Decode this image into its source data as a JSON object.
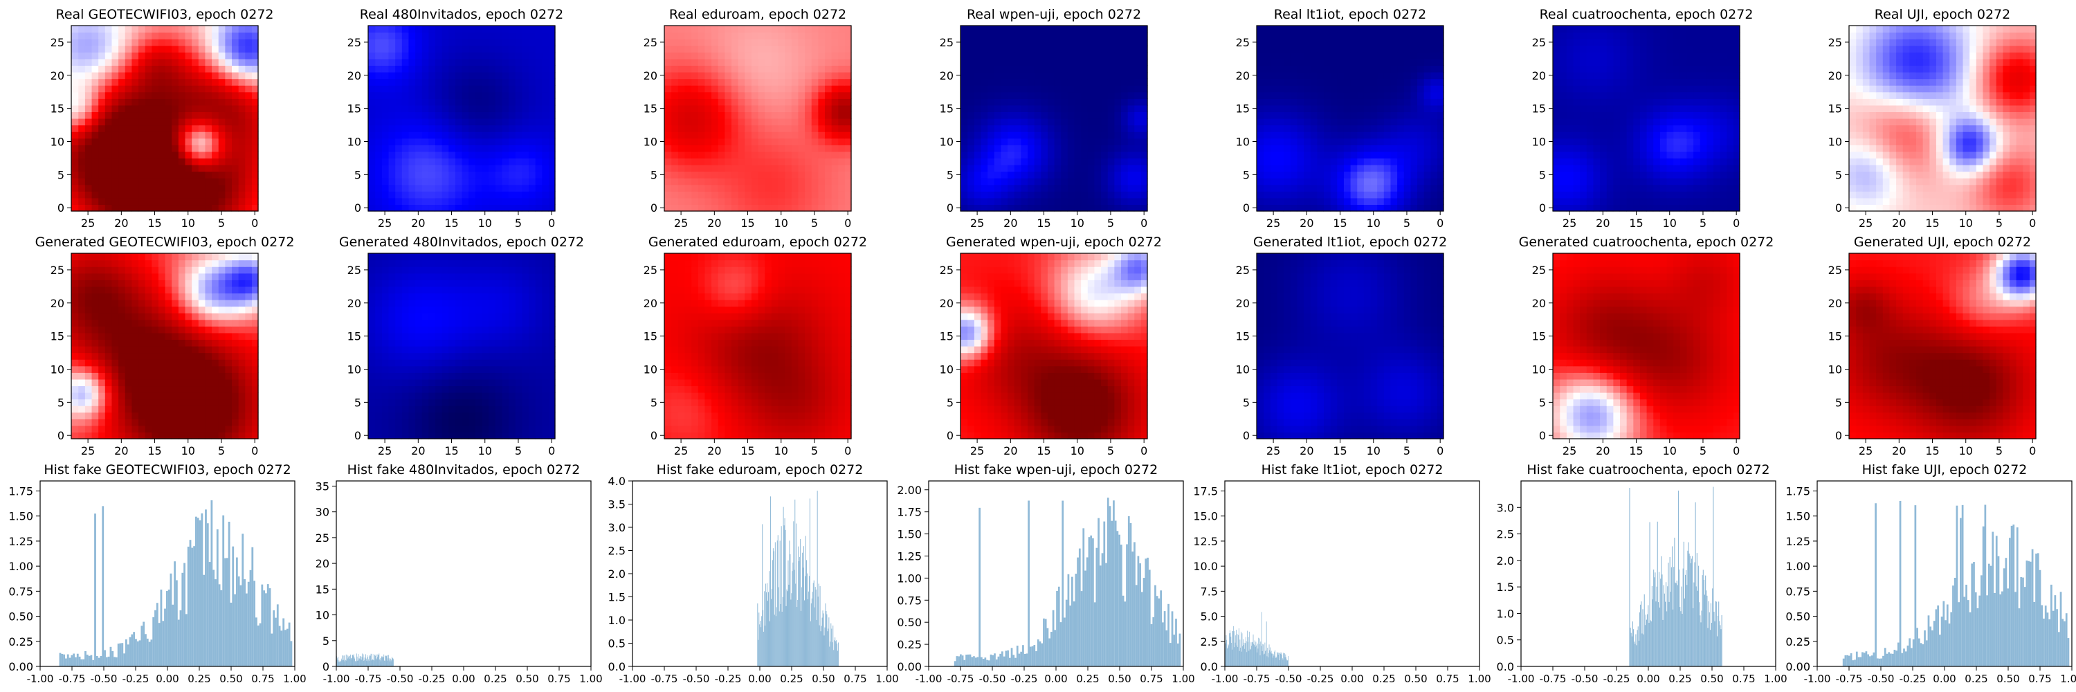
{
  "colors": {
    "map_low": "#00004c",
    "map_mid_low": "#0000ff",
    "map_zero": "#ffffff",
    "map_mid_high": "#ff0000",
    "map_high": "#7f0000",
    "histogram_bar": "#8fb9d7"
  },
  "chart_data": [
    {
      "type": "heatmap",
      "title": "Real GEOTECWIFI03, epoch 0272",
      "x_ticks": [
        "25",
        "20",
        "15",
        "10",
        "5",
        "0"
      ],
      "y_ticks": [
        "0",
        "5",
        "10",
        "15",
        "20",
        "25"
      ],
      "xlim": [
        28,
        0
      ],
      "ylim": [
        0,
        28
      ],
      "colormap": "seismic",
      "value_range": [
        -1,
        1
      ],
      "blobs": [
        {
          "x": 22,
          "y": 14,
          "r": 8,
          "v": 0.8
        },
        {
          "x": 10,
          "y": 4,
          "r": 7,
          "v": 1.0
        },
        {
          "x": 20,
          "y": 5,
          "r": 6,
          "v": 0.7
        },
        {
          "x": 5,
          "y": 16,
          "r": 6,
          "v": 0.6
        },
        {
          "x": 9,
          "y": 10,
          "r": 3,
          "v": -1.2
        },
        {
          "x": 25,
          "y": 23,
          "r": 5,
          "v": -0.6
        },
        {
          "x": 2,
          "y": 24,
          "r": 4,
          "v": -0.7
        },
        {
          "x": 27,
          "y": 15,
          "r": 3,
          "v": -0.6
        },
        {
          "x": 15,
          "y": 22,
          "r": 3,
          "v": 0.3
        }
      ],
      "base": 0.1
    },
    {
      "type": "heatmap",
      "title": "Real 480Invitados, epoch 0272",
      "x_ticks": [
        "25",
        "20",
        "15",
        "10",
        "5",
        "0"
      ],
      "y_ticks": [
        "0",
        "5",
        "10",
        "15",
        "20",
        "25"
      ],
      "xlim": [
        28,
        0
      ],
      "ylim": [
        0,
        28
      ],
      "colormap": "seismic",
      "value_range": [
        -1,
        1
      ],
      "blobs": [
        {
          "x": 26,
          "y": 25,
          "r": 4,
          "v": 0.3
        },
        {
          "x": 19,
          "y": 6,
          "r": 6,
          "v": 0.3
        },
        {
          "x": 5,
          "y": 6,
          "r": 4,
          "v": 0.2
        },
        {
          "x": 12,
          "y": 16,
          "r": 5,
          "v": -0.2
        }
      ],
      "base": -0.65
    },
    {
      "type": "heatmap",
      "title": "Real eduroam, epoch 0272",
      "x_ticks": [
        "25",
        "20",
        "15",
        "10",
        "5",
        "0"
      ],
      "y_ticks": [
        "0",
        "5",
        "10",
        "15",
        "20",
        "25"
      ],
      "xlim": [
        28,
        0
      ],
      "ylim": [
        0,
        28
      ],
      "colormap": "seismic",
      "value_range": [
        -1,
        1
      ],
      "blobs": [
        {
          "x": 24,
          "y": 14,
          "r": 5,
          "v": 0.4
        },
        {
          "x": 1,
          "y": 15,
          "r": 3,
          "v": 0.6
        },
        {
          "x": 14,
          "y": 22,
          "r": 6,
          "v": -0.1
        },
        {
          "x": 12,
          "y": 4,
          "r": 6,
          "v": 0.15
        }
      ],
      "base": 0.25
    },
    {
      "type": "heatmap",
      "title": "Real wpen-uji, epoch 0272",
      "x_ticks": [
        "25",
        "20",
        "15",
        "10",
        "5",
        "0"
      ],
      "y_ticks": [
        "0",
        "5",
        "10",
        "15",
        "20",
        "25"
      ],
      "xlim": [
        28,
        0
      ],
      "ylim": [
        0,
        28
      ],
      "colormap": "seismic",
      "value_range": [
        -1,
        1
      ],
      "blobs": [
        {
          "x": 20,
          "y": 9,
          "r": 4,
          "v": 0.4
        },
        {
          "x": 25,
          "y": 4,
          "r": 3,
          "v": 0.25
        },
        {
          "x": 2,
          "y": 5,
          "r": 3,
          "v": 0.3
        },
        {
          "x": 1,
          "y": 14,
          "r": 2,
          "v": 0.25
        }
      ],
      "base": -0.85
    },
    {
      "type": "heatmap",
      "title": "Real lt1iot, epoch 0272",
      "x_ticks": [
        "25",
        "20",
        "15",
        "10",
        "5",
        "0"
      ],
      "y_ticks": [
        "0",
        "5",
        "10",
        "15",
        "20",
        "25"
      ],
      "xlim": [
        28,
        0
      ],
      "ylim": [
        0,
        28
      ],
      "colormap": "seismic",
      "value_range": [
        -1,
        1
      ],
      "blobs": [
        {
          "x": 11,
          "y": 4,
          "r": 4,
          "v": 0.55
        },
        {
          "x": 25,
          "y": 8,
          "r": 5,
          "v": 0.35
        },
        {
          "x": 4,
          "y": 10,
          "r": 4,
          "v": 0.2
        },
        {
          "x": 1,
          "y": 18,
          "r": 2,
          "v": 0.25
        }
      ],
      "base": -0.85
    },
    {
      "type": "heatmap",
      "title": "Real cuatroochenta, epoch 0272",
      "x_ticks": [
        "25",
        "20",
        "15",
        "10",
        "5",
        "0"
      ],
      "y_ticks": [
        "0",
        "5",
        "10",
        "15",
        "20",
        "25"
      ],
      "xlim": [
        28,
        0
      ],
      "ylim": [
        0,
        28
      ],
      "colormap": "seismic",
      "value_range": [
        -1,
        1
      ],
      "blobs": [
        {
          "x": 10,
          "y": 10,
          "r": 4,
          "v": 0.35
        },
        {
          "x": 26,
          "y": 5,
          "r": 4,
          "v": 0.3
        },
        {
          "x": 22,
          "y": 23,
          "r": 5,
          "v": 0.15
        },
        {
          "x": 3,
          "y": 12,
          "r": 4,
          "v": 0.15
        }
      ],
      "base": -0.8
    },
    {
      "type": "heatmap",
      "title": "Real UJI, epoch 0272",
      "x_ticks": [
        "25",
        "20",
        "15",
        "10",
        "5",
        "0"
      ],
      "y_ticks": [
        "0",
        "5",
        "10",
        "15",
        "20",
        "25"
      ],
      "xlim": [
        28,
        0
      ],
      "ylim": [
        0,
        28
      ],
      "colormap": "seismic",
      "value_range": [
        -1,
        1
      ],
      "blobs": [
        {
          "x": 18,
          "y": 22,
          "r": 6,
          "v": -0.55
        },
        {
          "x": 10,
          "y": 10,
          "r": 3,
          "v": -0.55
        },
        {
          "x": 25,
          "y": 6,
          "r": 4,
          "v": -0.3
        },
        {
          "x": 3,
          "y": 20,
          "r": 4,
          "v": 0.5
        },
        {
          "x": 20,
          "y": 12,
          "r": 5,
          "v": 0.35
        },
        {
          "x": 4,
          "y": 4,
          "r": 4,
          "v": 0.3
        }
      ],
      "base": 0.1
    },
    {
      "type": "heatmap",
      "title": "Generated GEOTECWIFI03, epoch 0272",
      "x_ticks": [
        "25",
        "20",
        "15",
        "10",
        "5",
        "0"
      ],
      "y_ticks": [
        "0",
        "5",
        "10",
        "15",
        "20",
        "25"
      ],
      "xlim": [
        28,
        0
      ],
      "ylim": [
        0,
        28
      ],
      "colormap": "seismic",
      "value_range": [
        -1,
        1
      ],
      "blobs": [
        {
          "x": 10,
          "y": 5,
          "r": 7,
          "v": 0.9
        },
        {
          "x": 18,
          "y": 13,
          "r": 7,
          "v": 0.5
        },
        {
          "x": 25,
          "y": 22,
          "r": 5,
          "v": 0.5
        },
        {
          "x": 7,
          "y": 22,
          "r": 4,
          "v": -0.6
        },
        {
          "x": 26,
          "y": 7,
          "r": 3,
          "v": -0.7
        },
        {
          "x": 1,
          "y": 24,
          "r": 3,
          "v": -0.6
        }
      ],
      "base": 0.35
    },
    {
      "type": "heatmap",
      "title": "Generated 480Invitados, epoch 0272",
      "x_ticks": [
        "25",
        "20",
        "15",
        "10",
        "5",
        "0"
      ],
      "y_ticks": [
        "0",
        "5",
        "10",
        "15",
        "20",
        "25"
      ],
      "xlim": [
        28,
        0
      ],
      "ylim": [
        0,
        28
      ],
      "colormap": "seismic",
      "value_range": [
        -1,
        1
      ],
      "blobs": [
        {
          "x": 20,
          "y": 18,
          "r": 6,
          "v": 0.25
        },
        {
          "x": 8,
          "y": 20,
          "r": 5,
          "v": 0.15
        },
        {
          "x": 14,
          "y": 3,
          "r": 6,
          "v": -0.2
        }
      ],
      "base": -0.75
    },
    {
      "type": "heatmap",
      "title": "Generated eduroam, epoch 0272",
      "x_ticks": [
        "25",
        "20",
        "15",
        "10",
        "5",
        "0"
      ],
      "y_ticks": [
        "0",
        "5",
        "10",
        "15",
        "20",
        "25"
      ],
      "xlim": [
        28,
        0
      ],
      "ylim": [
        0,
        28
      ],
      "colormap": "seismic",
      "value_range": [
        -1,
        1
      ],
      "blobs": [
        {
          "x": 14,
          "y": 14,
          "r": 7,
          "v": 0.4
        },
        {
          "x": 8,
          "y": 5,
          "r": 5,
          "v": 0.2
        },
        {
          "x": 17,
          "y": 22,
          "r": 4,
          "v": -0.3
        },
        {
          "x": 24,
          "y": 5,
          "r": 5,
          "v": -0.15
        }
      ],
      "base": 0.5
    },
    {
      "type": "heatmap",
      "title": "Generated wpen-uji, epoch 0272",
      "x_ticks": [
        "25",
        "20",
        "15",
        "10",
        "5",
        "0"
      ],
      "y_ticks": [
        "0",
        "5",
        "10",
        "15",
        "20",
        "25"
      ],
      "xlim": [
        28,
        0
      ],
      "ylim": [
        0,
        28
      ],
      "colormap": "seismic",
      "value_range": [
        -1,
        1
      ],
      "blobs": [
        {
          "x": 10,
          "y": 5,
          "r": 6,
          "v": 0.7
        },
        {
          "x": 20,
          "y": 13,
          "r": 6,
          "v": 0.3
        },
        {
          "x": 8,
          "y": 22,
          "r": 5,
          "v": -0.5
        },
        {
          "x": 27,
          "y": 16,
          "r": 3,
          "v": -0.8
        },
        {
          "x": 1,
          "y": 26,
          "r": 3,
          "v": -0.6
        }
      ],
      "base": 0.45
    },
    {
      "type": "heatmap",
      "title": "Generated lt1iot, epoch 0272",
      "x_ticks": [
        "25",
        "20",
        "15",
        "10",
        "5",
        "0"
      ],
      "y_ticks": [
        "0",
        "5",
        "10",
        "15",
        "20",
        "25"
      ],
      "xlim": [
        28,
        0
      ],
      "ylim": [
        0,
        28
      ],
      "colormap": "seismic",
      "value_range": [
        -1,
        1
      ],
      "blobs": [
        {
          "x": 22,
          "y": 5,
          "r": 5,
          "v": 0.3
        },
        {
          "x": 6,
          "y": 7,
          "r": 5,
          "v": 0.25
        },
        {
          "x": 14,
          "y": 22,
          "r": 6,
          "v": 0.2
        }
      ],
      "base": -0.85
    },
    {
      "type": "heatmap",
      "title": "Generated cuatroochenta, epoch 0272",
      "x_ticks": [
        "25",
        "20",
        "15",
        "10",
        "5",
        "0"
      ],
      "y_ticks": [
        "0",
        "5",
        "10",
        "15",
        "20",
        "25"
      ],
      "xlim": [
        28,
        0
      ],
      "ylim": [
        0,
        28
      ],
      "colormap": "seismic",
      "value_range": [
        -1,
        1
      ],
      "blobs": [
        {
          "x": 22,
          "y": 4,
          "r": 5,
          "v": -0.7
        },
        {
          "x": 10,
          "y": 12,
          "r": 6,
          "v": 0.35
        },
        {
          "x": 20,
          "y": 16,
          "r": 6,
          "v": 0.4
        },
        {
          "x": 5,
          "y": 24,
          "r": 4,
          "v": 0.2
        }
      ],
      "base": 0.45
    },
    {
      "type": "heatmap",
      "title": "Generated UJI, epoch 0272",
      "x_ticks": [
        "25",
        "20",
        "15",
        "10",
        "5",
        "0"
      ],
      "y_ticks": [
        "0",
        "5",
        "10",
        "15",
        "20",
        "25"
      ],
      "xlim": [
        28,
        0
      ],
      "ylim": [
        0,
        28
      ],
      "colormap": "seismic",
      "value_range": [
        -1,
        1
      ],
      "blobs": [
        {
          "x": 10,
          "y": 8,
          "r": 6,
          "v": 0.6
        },
        {
          "x": 22,
          "y": 12,
          "r": 6,
          "v": 0.4
        },
        {
          "x": 2,
          "y": 25,
          "r": 3,
          "v": -0.9
        },
        {
          "x": 8,
          "y": 20,
          "r": 4,
          "v": -0.25
        },
        {
          "x": 26,
          "y": 20,
          "r": 3,
          "v": 0.3
        }
      ],
      "base": 0.45
    },
    {
      "type": "histogram",
      "title": "Hist fake GEOTECWIFI03, epoch 0272",
      "xlim": [
        -1,
        1
      ],
      "ylim": [
        0,
        1.85
      ],
      "x_ticks": [
        "-1.00",
        "-0.75",
        "-0.50",
        "-0.25",
        "0.00",
        "0.25",
        "0.50",
        "0.75",
        "1.00"
      ],
      "y_ticks": [
        "0.00",
        "0.25",
        "0.50",
        "0.75",
        "1.00",
        "1.25",
        "1.50",
        "1.75"
      ],
      "y_tick_values": [
        0,
        0.25,
        0.5,
        0.75,
        1.0,
        1.25,
        1.5,
        1.75
      ],
      "bins": 200,
      "range": [
        -0.85,
        0.98
      ],
      "peak": {
        "center": 0.38,
        "width": 0.32,
        "height": 1.1,
        "max": 1.8
      },
      "floor": 0.1
    },
    {
      "type": "histogram",
      "title": "Hist fake 480Invitados, epoch 0272",
      "xlim": [
        -1,
        1
      ],
      "ylim": [
        0,
        36
      ],
      "x_ticks": [
        "-1.00",
        "-0.75",
        "-0.50",
        "-0.25",
        "0.00",
        "0.25",
        "0.50",
        "0.75",
        "1.00"
      ],
      "y_ticks": [
        "0",
        "5",
        "10",
        "15",
        "20",
        "25",
        "30",
        "35"
      ],
      "y_tick_values": [
        0,
        5,
        10,
        15,
        20,
        25,
        30,
        35
      ],
      "bins": 200,
      "range": [
        -1.0,
        -0.55
      ],
      "peak": {
        "center": -0.75,
        "width": 0.3,
        "height": 1.3,
        "max": 2.5
      },
      "floor": 0.5
    },
    {
      "type": "histogram",
      "title": "Hist fake eduroam, epoch 0272",
      "xlim": [
        -1,
        1
      ],
      "ylim": [
        0,
        4.0
      ],
      "x_ticks": [
        "-1.00",
        "-0.75",
        "-0.50",
        "-0.25",
        "0.00",
        "0.25",
        "0.50",
        "0.75",
        "1.00"
      ],
      "y_ticks": [
        "0.0",
        "0.5",
        "1.0",
        "1.5",
        "2.0",
        "2.5",
        "3.0",
        "3.5",
        "4.0"
      ],
      "y_tick_values": [
        0,
        0.5,
        1.0,
        1.5,
        2.0,
        2.5,
        3.0,
        3.5,
        4.0
      ],
      "bins": 200,
      "range": [
        -0.02,
        0.62
      ],
      "peak": {
        "center": 0.25,
        "width": 0.2,
        "height": 2.3,
        "max": 3.8
      },
      "floor": 0.0
    },
    {
      "type": "histogram",
      "title": "Hist fake wpen-uji, epoch 0272",
      "xlim": [
        -1,
        1
      ],
      "ylim": [
        0,
        2.1
      ],
      "x_ticks": [
        "-1.00",
        "-0.75",
        "-0.50",
        "-0.25",
        "0.00",
        "0.25",
        "0.50",
        "0.75",
        "1.00"
      ],
      "y_ticks": [
        "0.00",
        "0.25",
        "0.50",
        "0.75",
        "1.00",
        "1.25",
        "1.50",
        "1.75",
        "2.00"
      ],
      "y_tick_values": [
        0,
        0.25,
        0.5,
        0.75,
        1.0,
        1.25,
        1.5,
        1.75,
        2.0
      ],
      "bins": 200,
      "range": [
        -0.8,
        0.98
      ],
      "peak": {
        "center": 0.42,
        "width": 0.3,
        "height": 1.3,
        "max": 2.0
      },
      "floor": 0.1
    },
    {
      "type": "histogram",
      "title": "Hist fake lt1iot, epoch 0272",
      "xlim": [
        -1,
        1
      ],
      "ylim": [
        0,
        18.5
      ],
      "x_ticks": [
        "-1.00",
        "-0.75",
        "-0.50",
        "-0.25",
        "0.00",
        "0.25",
        "0.50",
        "0.75",
        "1.00"
      ],
      "y_ticks": [
        "0.0",
        "2.5",
        "5.0",
        "7.5",
        "10.0",
        "12.5",
        "15.0",
        "17.5"
      ],
      "y_tick_values": [
        0,
        2.5,
        5.0,
        7.5,
        10.0,
        12.5,
        15.0,
        17.5
      ],
      "bins": 200,
      "range": [
        -1.0,
        -0.5
      ],
      "peak": {
        "center": -0.95,
        "width": 0.25,
        "height": 2.5,
        "max": 5.5
      },
      "floor": 0.3
    },
    {
      "type": "histogram",
      "title": "Hist fake cuatroochenta, epoch 0272",
      "xlim": [
        -1,
        1
      ],
      "ylim": [
        0,
        3.5
      ],
      "x_ticks": [
        "-1.00",
        "-0.75",
        "-0.50",
        "-0.25",
        "0.00",
        "0.25",
        "0.50",
        "0.75",
        "1.00"
      ],
      "y_ticks": [
        "0.0",
        "0.5",
        "1.0",
        "1.5",
        "2.0",
        "2.5",
        "3.0"
      ],
      "y_tick_values": [
        0,
        0.5,
        1.0,
        1.5,
        2.0,
        2.5,
        3.0
      ],
      "bins": 200,
      "range": [
        -0.15,
        0.58
      ],
      "peak": {
        "center": 0.25,
        "width": 0.25,
        "height": 1.8,
        "max": 3.4
      },
      "floor": 0.0
    },
    {
      "type": "histogram",
      "title": "Hist fake UJI, epoch 0272",
      "xlim": [
        -1,
        1
      ],
      "ylim": [
        0,
        1.85
      ],
      "x_ticks": [
        "-1.00",
        "-0.75",
        "-0.50",
        "-0.25",
        "0.00",
        "0.25",
        "0.50",
        "0.75",
        "1.00"
      ],
      "y_ticks": [
        "0.00",
        "0.25",
        "0.50",
        "0.75",
        "1.00",
        "1.25",
        "1.50",
        "1.75"
      ],
      "y_tick_values": [
        0,
        0.25,
        0.5,
        0.75,
        1.0,
        1.25,
        1.5,
        1.75
      ],
      "bins": 200,
      "range": [
        -0.8,
        0.98
      ],
      "peak": {
        "center": 0.45,
        "width": 0.35,
        "height": 1.0,
        "max": 1.8
      },
      "floor": 0.1
    }
  ]
}
